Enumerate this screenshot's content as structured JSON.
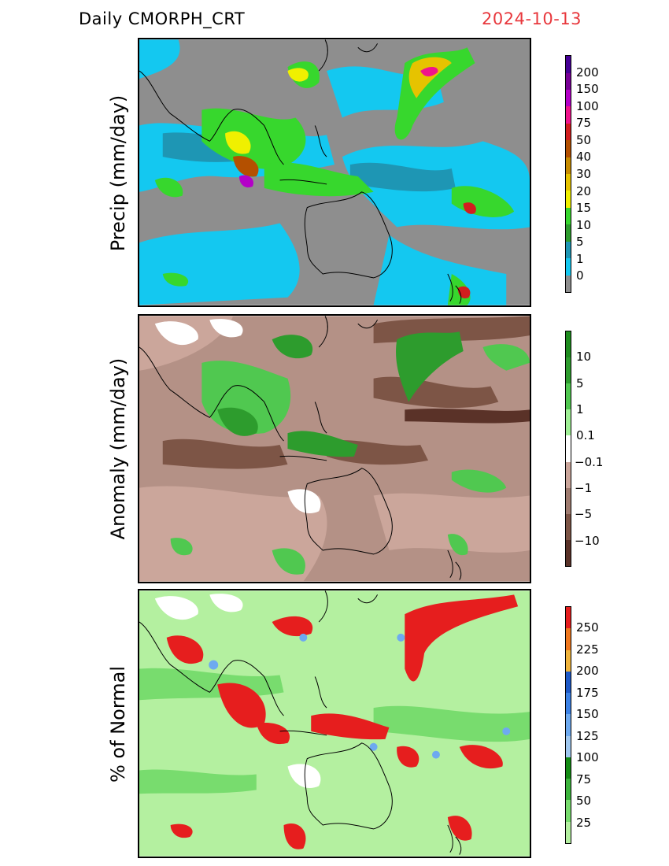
{
  "header": {
    "title": "Daily  CMORPH_CRT",
    "date": "2024-10-13"
  },
  "panels": [
    {
      "ylabel": "Precip (mm/day)",
      "bg": "#8e8e8e",
      "legend": {
        "labels": [
          "0",
          "1",
          "5",
          "10",
          "15",
          "20",
          "30",
          "40",
          "50",
          "75",
          "100",
          "150",
          "200"
        ],
        "colors": [
          "#8e8e8e",
          "#14c8f0",
          "#1e96b4",
          "#2d9c2d",
          "#37d72d",
          "#f0f000",
          "#e6c300",
          "#c88c00",
          "#b45000",
          "#d21e1e",
          "#f0148c",
          "#b400c8",
          "#780096",
          "#460096"
        ]
      }
    },
    {
      "ylabel": "Anomaly (mm/day)",
      "bg": "#b49186",
      "legend": {
        "labels": [
          "−10",
          "−5",
          "−1",
          "−0.1",
          "0.1",
          "1",
          "5",
          "10"
        ],
        "colors": [
          "#5a3228",
          "#7d5546",
          "#a07c70",
          "#cba69b",
          "#ffffff",
          "#a0f096",
          "#50c850",
          "#2d9c2d",
          "#1e8c1e"
        ]
      }
    },
    {
      "ylabel": "% of Normal",
      "bg": "#b4f0a0",
      "legend": {
        "labels": [
          "25",
          "50",
          "75",
          "100",
          "125",
          "150",
          "175",
          "200",
          "225",
          "250"
        ],
        "colors": [
          "#b4f0a0",
          "#78dc6e",
          "#3cb43c",
          "#148c14",
          "#a0c8f0",
          "#6eaaf0",
          "#3c82e6",
          "#1e5ac8",
          "#f0b43c",
          "#f0781e",
          "#e61e1e"
        ]
      }
    }
  ]
}
